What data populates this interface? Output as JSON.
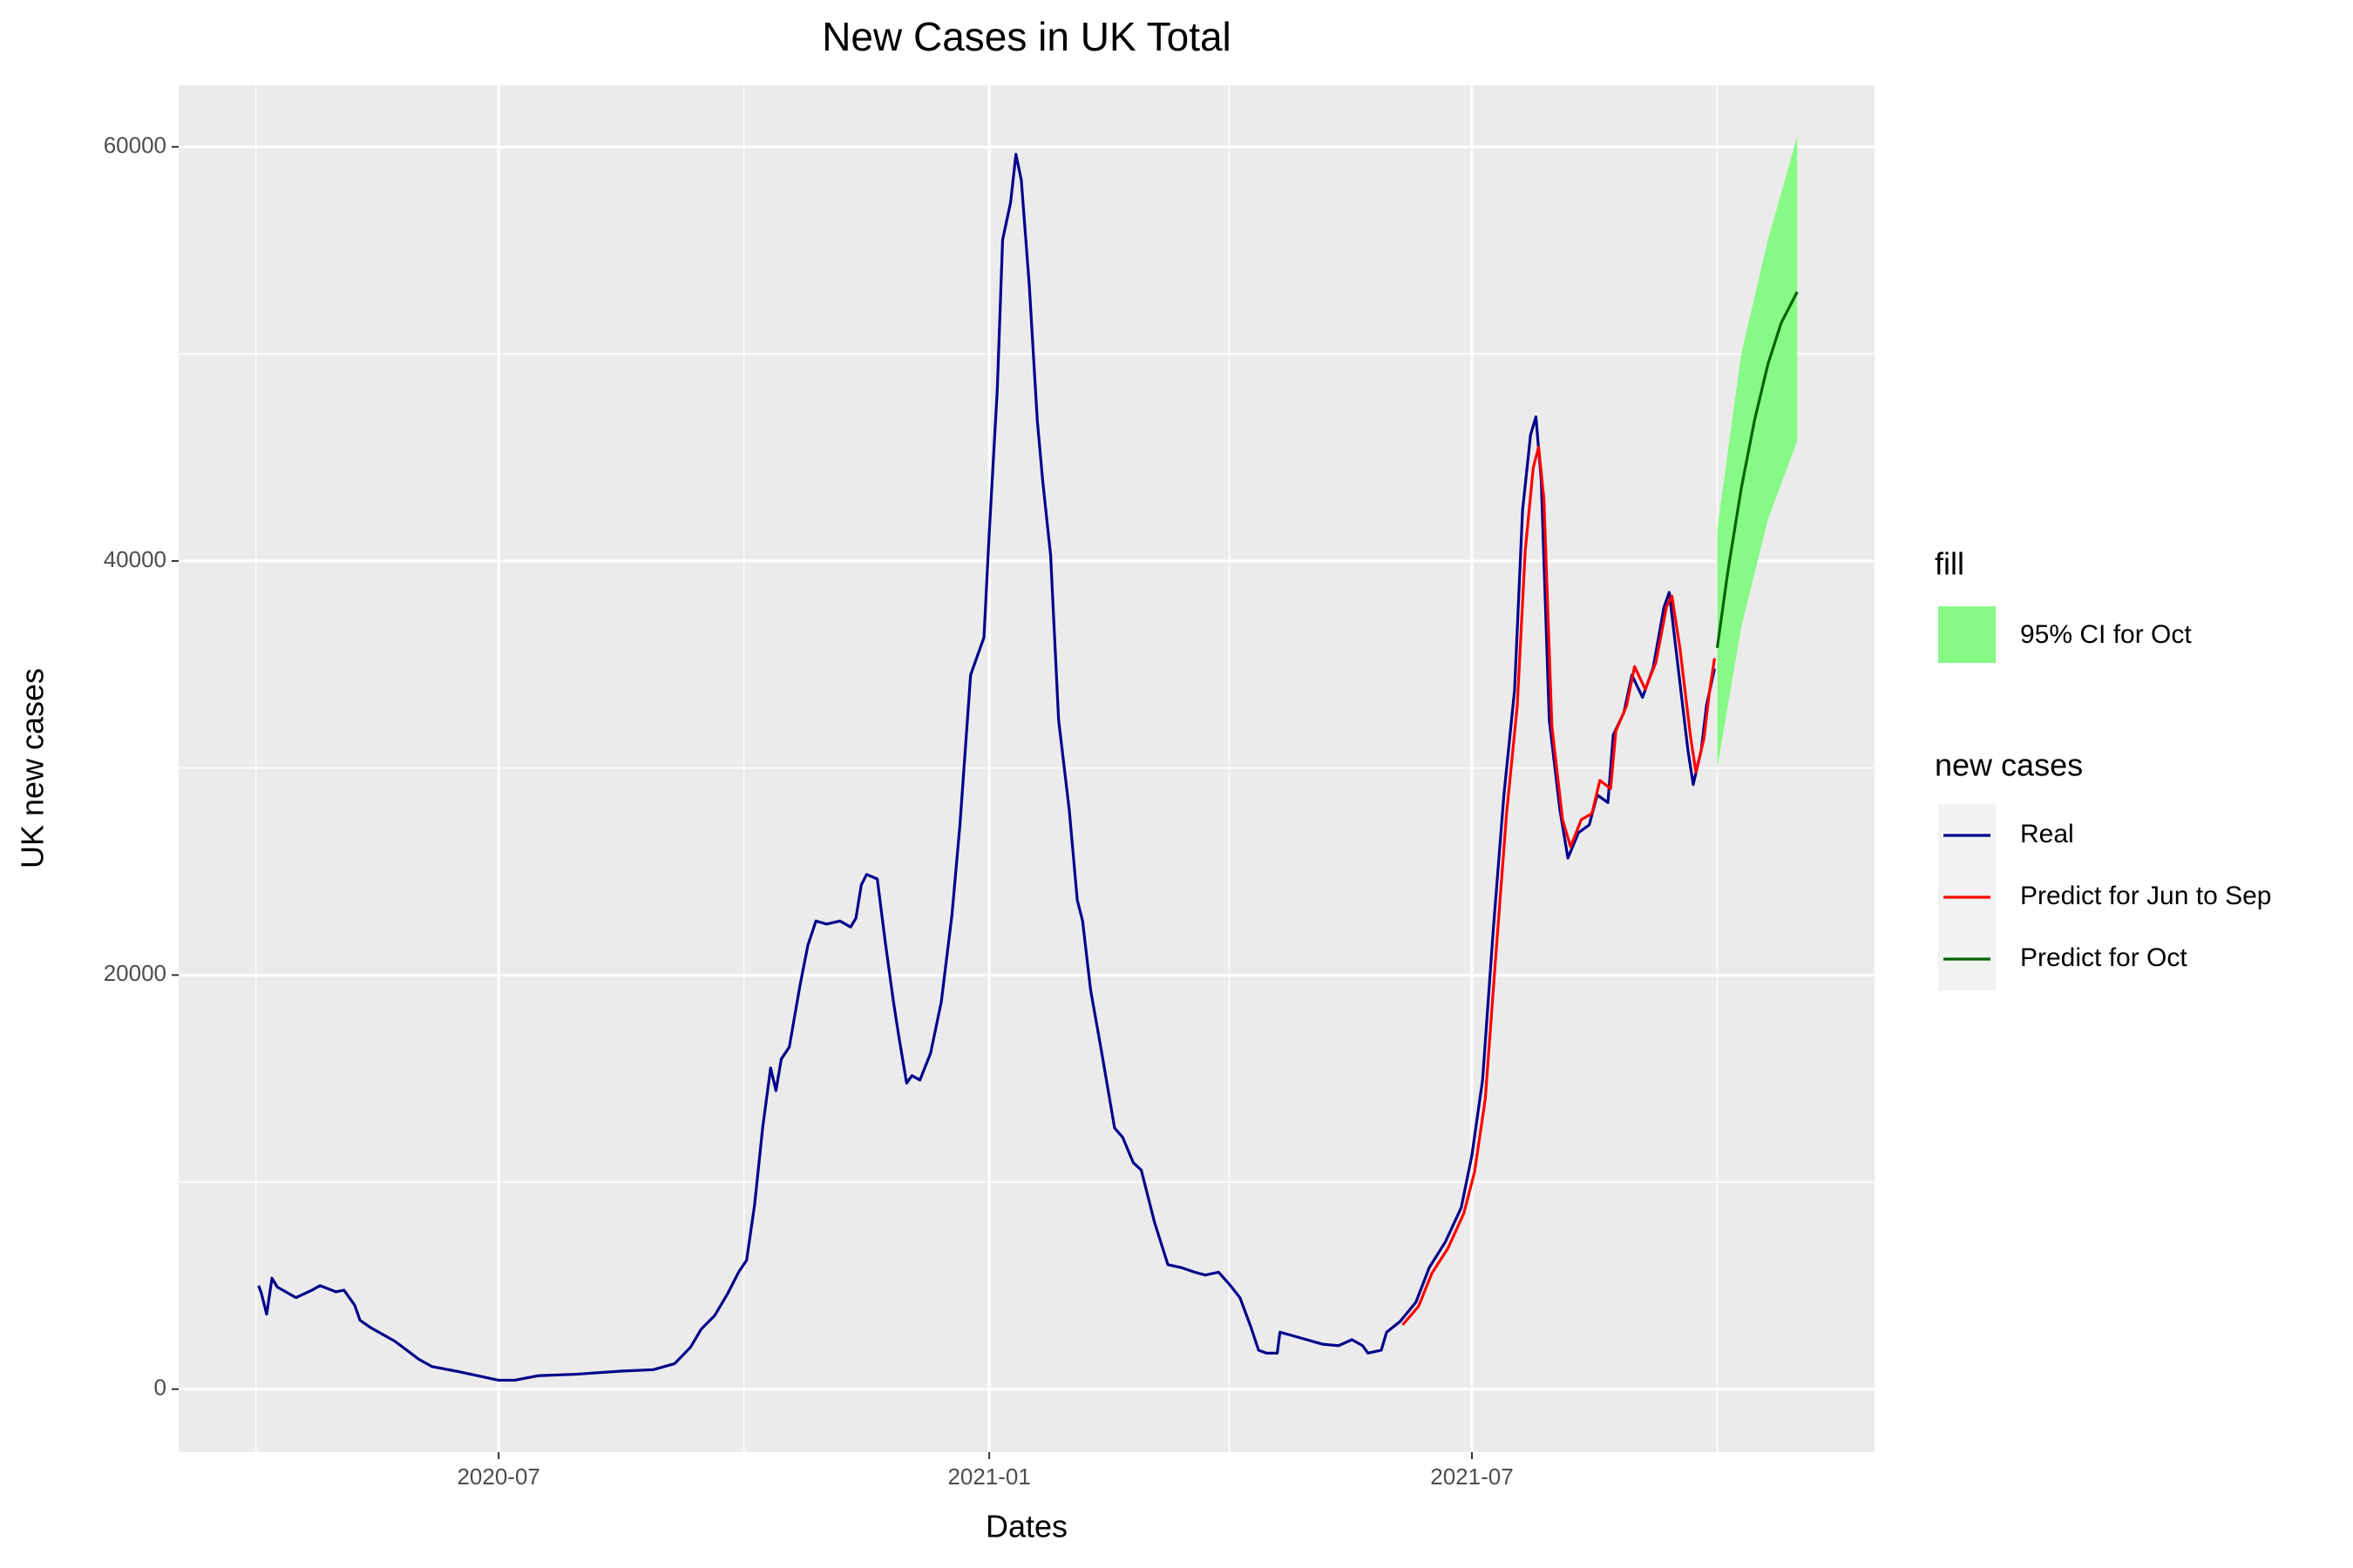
{
  "chart_data": {
    "type": "line",
    "title": "New Cases in UK Total",
    "x_label": "Dates",
    "y_label": "UK new cases",
    "xlim": [
      "2020-03-03",
      "2021-11-29"
    ],
    "xticks": [
      {
        "value": "2020-07-01",
        "label": "2020-07"
      },
      {
        "value": "2021-01-01",
        "label": "2021-01"
      },
      {
        "value": "2021-07-01",
        "label": "2021-07"
      }
    ],
    "minor_xticks": [
      "2020-04-01",
      "2020-10-01",
      "2021-04-01",
      "2021-10-01"
    ],
    "ylim": [
      -3043,
      62970
    ],
    "yticks": [
      0,
      20000,
      40000,
      60000
    ],
    "minor_yticks": [
      10000,
      30000,
      50000
    ],
    "grid": true,
    "fill_legend_title": "fill",
    "color_legend_title": "new cases",
    "band": {
      "name": "95% CI for Oct",
      "color": "#86f986",
      "x": [
        "2021-10-01",
        "2021-10-10",
        "2021-10-20",
        "2021-10-31"
      ],
      "lower": [
        30000,
        36800,
        42000,
        45800
      ],
      "upper": [
        41500,
        50000,
        55500,
        60500
      ]
    },
    "series": [
      {
        "name": "Real",
        "color": "#00008b",
        "x": [
          "2020-04-02",
          "2020-04-03",
          "2020-04-05",
          "2020-04-07",
          "2020-04-09",
          "2020-04-16",
          "2020-04-22",
          "2020-04-25",
          "2020-05-01",
          "2020-05-04",
          "2020-05-08",
          "2020-05-10",
          "2020-05-14",
          "2020-05-23",
          "2020-06-01",
          "2020-06-06",
          "2020-06-15",
          "2020-06-23",
          "2020-07-01",
          "2020-07-07",
          "2020-07-16",
          "2020-07-30",
          "2020-08-16",
          "2020-08-28",
          "2020-09-05",
          "2020-09-11",
          "2020-09-15",
          "2020-09-20",
          "2020-09-25",
          "2020-09-29",
          "2020-10-02",
          "2020-10-05",
          "2020-10-08",
          "2020-10-11",
          "2020-10-13",
          "2020-10-15",
          "2020-10-18",
          "2020-10-22",
          "2020-10-25",
          "2020-10-28",
          "2020-11-01",
          "2020-11-06",
          "2020-11-10",
          "2020-11-12",
          "2020-11-14",
          "2020-11-16",
          "2020-11-20",
          "2020-11-23",
          "2020-11-26",
          "2020-11-28",
          "2020-12-01",
          "2020-12-03",
          "2020-12-06",
          "2020-12-10",
          "2020-12-14",
          "2020-12-18",
          "2020-12-21",
          "2020-12-25",
          "2020-12-27",
          "2020-12-30",
          "2021-01-01",
          "2021-01-04",
          "2021-01-06",
          "2021-01-09",
          "2021-01-11",
          "2021-01-13",
          "2021-01-16",
          "2021-01-19",
          "2021-01-21",
          "2021-01-24",
          "2021-01-27",
          "2021-01-31",
          "2021-02-03",
          "2021-02-05",
          "2021-02-08",
          "2021-02-12",
          "2021-02-17",
          "2021-02-20",
          "2021-02-24",
          "2021-02-27",
          "2021-03-04",
          "2021-03-09",
          "2021-03-14",
          "2021-03-19",
          "2021-03-23",
          "2021-03-28",
          "2021-04-01",
          "2021-04-05",
          "2021-04-09",
          "2021-04-12",
          "2021-04-15",
          "2021-04-19",
          "2021-04-20",
          "2021-04-24",
          "2021-04-30",
          "2021-05-06",
          "2021-05-12",
          "2021-05-17",
          "2021-05-21",
          "2021-05-23",
          "2021-05-28",
          "2021-05-30",
          "2021-06-04",
          "2021-06-10",
          "2021-06-15",
          "2021-06-21",
          "2021-06-27",
          "2021-07-01",
          "2021-07-05",
          "2021-07-09",
          "2021-07-13",
          "2021-07-17",
          "2021-07-20",
          "2021-07-23",
          "2021-07-25",
          "2021-07-27",
          "2021-07-30",
          "2021-08-03",
          "2021-08-06",
          "2021-08-10",
          "2021-08-14",
          "2021-08-17",
          "2021-08-21",
          "2021-08-23",
          "2021-08-27",
          "2021-08-30",
          "2021-09-03",
          "2021-09-07",
          "2021-09-11",
          "2021-09-13",
          "2021-09-16",
          "2021-09-20",
          "2021-09-22",
          "2021-09-25",
          "2021-09-27",
          "2021-09-30"
        ],
        "values": [
          5000,
          4640,
          3620,
          5360,
          4930,
          4420,
          4780,
          5000,
          4700,
          4780,
          4060,
          3330,
          2970,
          2320,
          1450,
          1090,
          870,
          650,
          430,
          430,
          650,
          720,
          870,
          940,
          1230,
          2030,
          2900,
          3550,
          4640,
          5650,
          6230,
          8910,
          12610,
          15510,
          14420,
          15940,
          16520,
          19490,
          21450,
          22610,
          22460,
          22610,
          22320,
          22750,
          24350,
          24860,
          24640,
          21590,
          18770,
          17100,
          14780,
          15140,
          14930,
          16230,
          18700,
          22900,
          27250,
          34490,
          35220,
          36300,
          41380,
          48260,
          55510,
          57320,
          59640,
          58410,
          53330,
          46810,
          43910,
          40290,
          32320,
          27970,
          23620,
          22610,
          19280,
          16380,
          12610,
          12170,
          10940,
          10580,
          8040,
          6010,
          5870,
          5650,
          5510,
          5650,
          5070,
          4420,
          3040,
          1880,
          1740,
          1740,
          2750,
          2610,
          2390,
          2170,
          2100,
          2390,
          2100,
          1740,
          1880,
          2750,
          3260,
          4200,
          5870,
          7100,
          8770,
          11300,
          14930,
          22170,
          28700,
          33770,
          42460,
          46090,
          46960,
          43910,
          32320,
          27970,
          25650,
          26880,
          27250,
          28700,
          28330,
          31590,
          32680,
          34490,
          33410,
          34860,
          37750,
          38480,
          35220,
          30870,
          29200,
          30870,
          33040,
          34800
        ]
      },
      {
        "name": "Predict for Jun to Sep",
        "color": "#ff0000",
        "x": [
          "2021-06-05",
          "2021-06-11",
          "2021-06-16",
          "2021-06-22",
          "2021-06-28",
          "2021-07-02",
          "2021-07-06",
          "2021-07-10",
          "2021-07-14",
          "2021-07-18",
          "2021-07-21",
          "2021-07-24",
          "2021-07-26",
          "2021-07-28",
          "2021-07-31",
          "2021-08-04",
          "2021-08-07",
          "2021-08-11",
          "2021-08-15",
          "2021-08-18",
          "2021-08-22",
          "2021-08-24",
          "2021-08-28",
          "2021-08-31",
          "2021-09-04",
          "2021-09-08",
          "2021-09-12",
          "2021-09-14",
          "2021-09-17",
          "2021-09-21",
          "2021-09-23",
          "2021-09-26",
          "2021-09-28",
          "2021-09-30"
        ],
        "values": [
          3100,
          4000,
          5600,
          6800,
          8500,
          10500,
          14000,
          21000,
          27800,
          33000,
          40500,
          44500,
          45500,
          43000,
          32000,
          27500,
          26200,
          27500,
          27800,
          29400,
          29000,
          31800,
          33000,
          34900,
          33800,
          35100,
          37800,
          38300,
          35800,
          31500,
          29800,
          31400,
          33600,
          35300
        ]
      },
      {
        "name": "Predict for Oct",
        "color": "#006400",
        "x": [
          "2021-10-01",
          "2021-10-05",
          "2021-10-10",
          "2021-10-15",
          "2021-10-20",
          "2021-10-25",
          "2021-10-31"
        ],
        "values": [
          35800,
          39500,
          43500,
          46800,
          49500,
          51500,
          53000
        ]
      }
    ]
  }
}
